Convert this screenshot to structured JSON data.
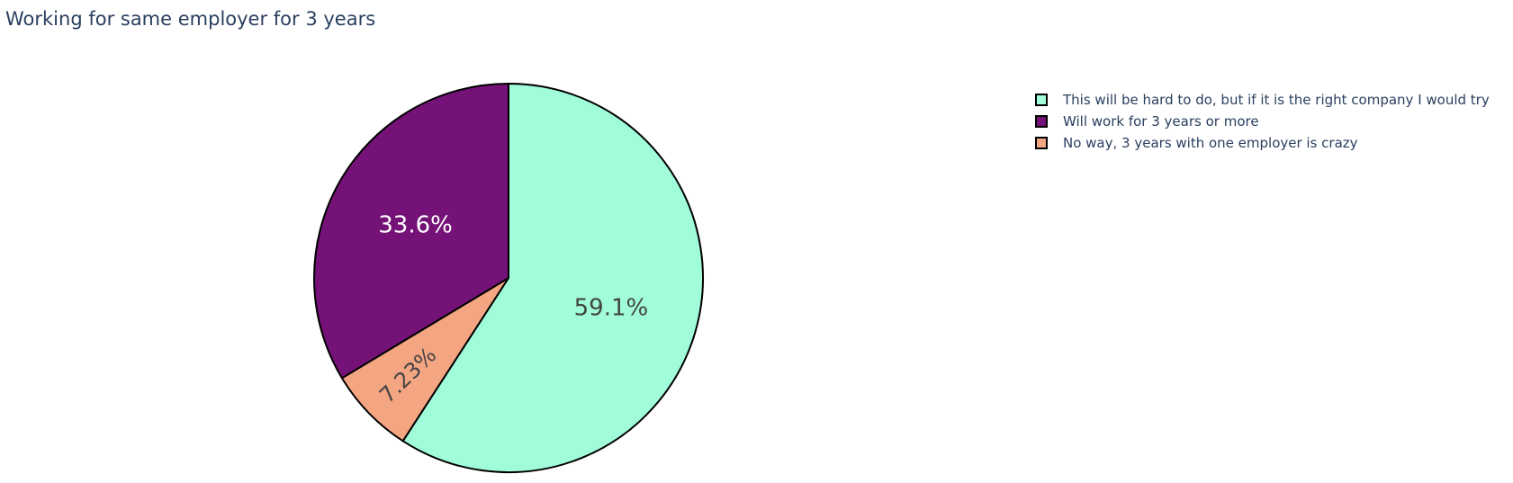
{
  "chart_data": {
    "type": "pie",
    "title": "Working for same employer for 3 years",
    "slices": [
      {
        "label": "This will be hard to do, but if it is the right company I would try",
        "percent": 59.1,
        "percent_text": "59.1%",
        "color": "#a0fcd9"
      },
      {
        "label": "No way, 3 years with one employer is crazy",
        "percent": 7.23,
        "percent_text": "7.23%",
        "color": "#f4a582"
      },
      {
        "label": "Will work for 3 years or more",
        "percent": 33.6,
        "percent_text": "33.6%",
        "color": "#751277"
      }
    ],
    "legend": [
      {
        "label": "This will be hard to do, but if it is the right company I would try",
        "color": "#a0fcd9"
      },
      {
        "label": "Will work for 3 years or more",
        "color": "#751277"
      },
      {
        "label": "No way, 3 years with one employer is crazy",
        "color": "#f4a582"
      }
    ],
    "legend_position": "top-right",
    "direction": "clockwise",
    "start_angle": "12 o'clock",
    "slice_border_color": "#000000",
    "label_colors": {
      "on_light": "#444444",
      "on_dark": "#ffffff"
    }
  }
}
